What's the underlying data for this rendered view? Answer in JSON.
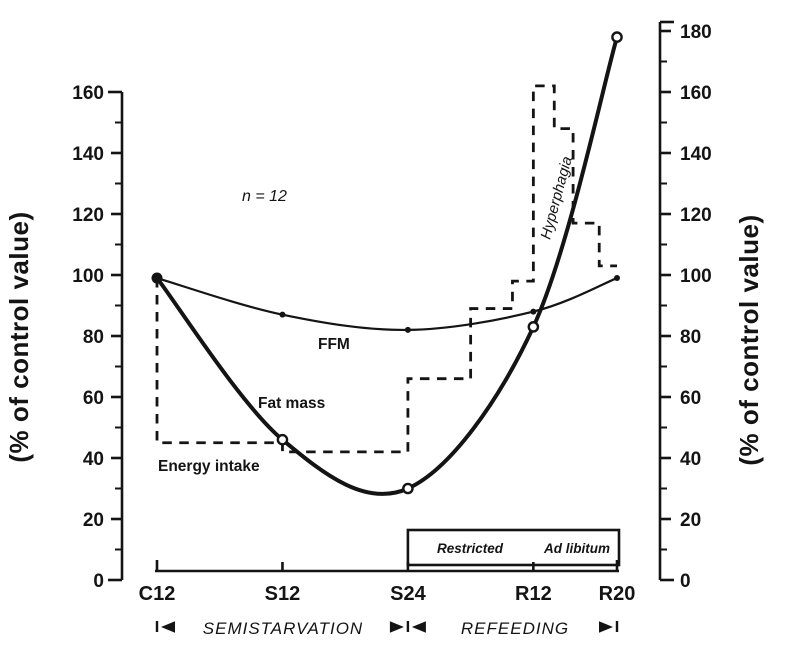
{
  "figure": {
    "background": "#ffffff",
    "ink": "#141414"
  },
  "chart_data": {
    "type": "line",
    "title": "",
    "legend_position": "inline-labels",
    "grid": false,
    "x_axis": {
      "categories": [
        {
          "label": "C12",
          "day": 0
        },
        {
          "label": "S12",
          "day": 12
        },
        {
          "label": "S24",
          "day": 24
        },
        {
          "label": "R12",
          "day": 36
        },
        {
          "label": "R20",
          "day": 44
        }
      ]
    },
    "y_left": {
      "title": "(% of control value)",
      "min": 0,
      "max": 160,
      "major_step": 20,
      "minor_step": 10,
      "tick_labels": [
        "0",
        "20",
        "40",
        "60",
        "80",
        "100",
        "120",
        "140",
        "160"
      ]
    },
    "y_right": {
      "title": "(% of control value)",
      "min": 0,
      "max": 180,
      "major_step": 20,
      "minor_step": 10,
      "tick_labels": [
        "0",
        "20",
        "40",
        "60",
        "80",
        "100",
        "120",
        "140",
        "160",
        "180"
      ]
    },
    "series": [
      {
        "name": "ffm",
        "label": "FFM",
        "style": "thin-solid",
        "marker": "filled-dot",
        "x_days": [
          0,
          12,
          24,
          36,
          44
        ],
        "values": [
          99,
          87,
          82,
          88,
          99
        ]
      },
      {
        "name": "fat-mass",
        "label": "Fat  mass",
        "style": "thick-solid",
        "marker": "open-circle",
        "x_days": [
          0,
          12,
          24,
          36,
          44
        ],
        "values": [
          99,
          46,
          30,
          83,
          178
        ]
      },
      {
        "name": "energy-intake",
        "label": "Energy intake",
        "style": "dashed-step",
        "points_day_value": [
          [
            0,
            99
          ],
          [
            0,
            45
          ],
          [
            12,
            45
          ],
          [
            12,
            42
          ],
          [
            24,
            42
          ],
          [
            24,
            66
          ],
          [
            30,
            66
          ],
          [
            30,
            89
          ],
          [
            34,
            89
          ],
          [
            34,
            98
          ],
          [
            36,
            98
          ],
          [
            36,
            162
          ],
          [
            38,
            162
          ],
          [
            38,
            148
          ],
          [
            39.8,
            148
          ],
          [
            39.8,
            117
          ],
          [
            42.3,
            117
          ],
          [
            42.3,
            103
          ],
          [
            44,
            103
          ]
        ]
      }
    ],
    "notes": {
      "sample_size": "n = 12",
      "hyperphagia": "Hyperphagia"
    },
    "phases": {
      "semistarvation": "SEMISTARVATION",
      "refeeding": "REFEEDING",
      "boundaries_days": [
        0,
        24,
        44
      ]
    },
    "refeeding_box": {
      "from_day": 24,
      "to_day": 44,
      "divider_day": 36,
      "labels": [
        "Restricted",
        "Ad libitum"
      ]
    }
  }
}
